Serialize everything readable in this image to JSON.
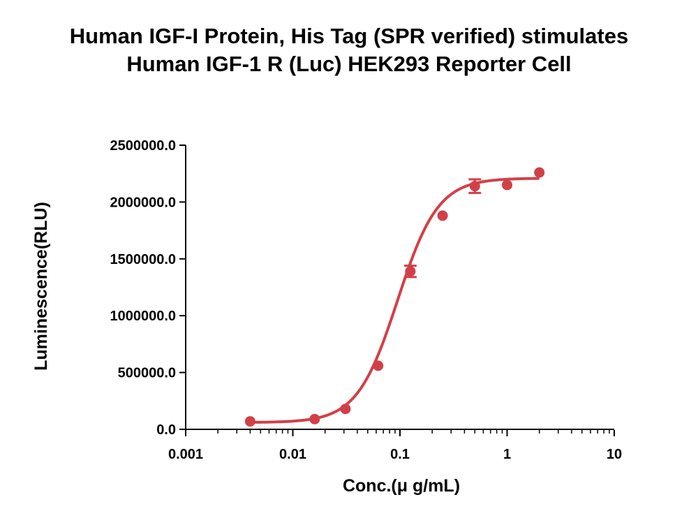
{
  "chart_data": {
    "type": "scatter",
    "title": [
      "Human IGF-I Protein, His Tag (SPR verified) stimulates",
      "Human IGF-1 R (Luc) HEK293 Reporter Cell"
    ],
    "xlabel": "Conc.(μ g/mL)",
    "ylabel": "Luminescence(RLU)",
    "xscale": "log",
    "xlim": [
      0.001,
      10
    ],
    "ylim": [
      0,
      2500000
    ],
    "xticks": [
      0.001,
      0.01,
      0.1,
      1,
      10
    ],
    "xtick_labels": [
      "0.001",
      "0.01",
      "0.1",
      "1",
      "10"
    ],
    "yticks": [
      0,
      500000,
      1000000,
      1500000,
      2000000,
      2500000
    ],
    "ytick_labels": [
      "0.0",
      "500000.0",
      "1000000.0",
      "1500000.0",
      "2000000.0",
      "2500000.0"
    ],
    "color": "#d24047",
    "series": [
      {
        "x": [
          0.004,
          0.016,
          0.031,
          0.0625,
          0.125,
          0.25,
          0.5,
          1,
          2
        ],
        "y": [
          70000,
          90000,
          180000,
          560000,
          1390000,
          1880000,
          2140000,
          2150000,
          2260000
        ],
        "error": [
          0,
          0,
          0,
          0,
          50000,
          0,
          60000,
          0,
          0
        ]
      }
    ],
    "fit": {
      "type": "4PL",
      "bottom": 60000,
      "top": 2210000,
      "ec50": 0.095,
      "hill": 2.3
    }
  }
}
